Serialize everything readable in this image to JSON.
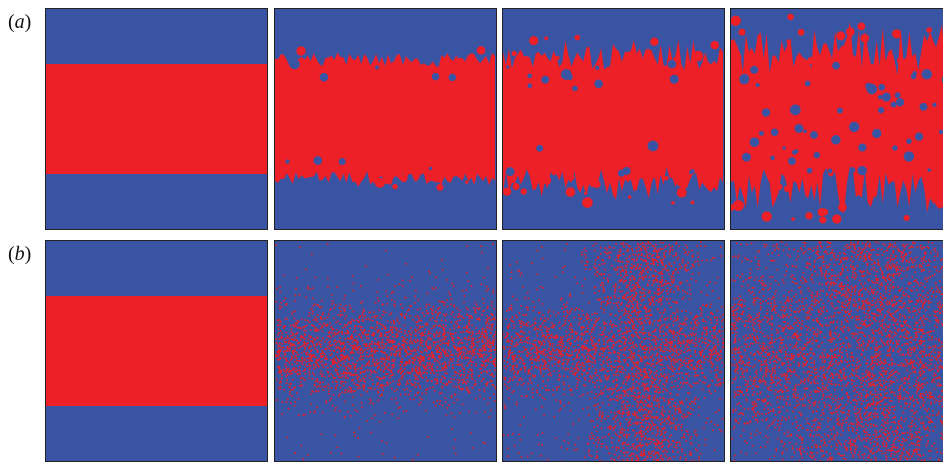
{
  "figure": {
    "row_labels": [
      {
        "paren_open": "(",
        "letter": "a",
        "paren_close": ")"
      },
      {
        "paren_open": "(",
        "letter": "b",
        "paren_close": ")"
      }
    ],
    "colors": {
      "blue": "#3a54a4",
      "red": "#ec2026",
      "border": "#222222"
    },
    "rows": [
      {
        "id": "a",
        "panels": [
          {
            "kind": "band",
            "band_top": 0.25,
            "band_bottom": 0.75
          },
          {
            "kind": "rough-band",
            "band_top": 0.25,
            "band_bottom": 0.75,
            "roughness": 0.06,
            "islands": 0.02
          },
          {
            "kind": "rough-band",
            "band_top": 0.25,
            "band_bottom": 0.75,
            "roughness": 0.12,
            "islands": 0.05
          },
          {
            "kind": "rough-band",
            "band_top": 0.25,
            "band_bottom": 0.75,
            "roughness": 0.2,
            "islands": 0.1
          }
        ]
      },
      {
        "id": "b",
        "panels": [
          {
            "kind": "band",
            "band_top": 0.25,
            "band_bottom": 0.75
          },
          {
            "kind": "speckle",
            "pattern": "horizontal",
            "density": 0.55
          },
          {
            "kind": "speckle",
            "pattern": "cross",
            "density": 0.75
          },
          {
            "kind": "speckle",
            "pattern": "cross-dense",
            "density": 0.9
          }
        ]
      }
    ]
  }
}
